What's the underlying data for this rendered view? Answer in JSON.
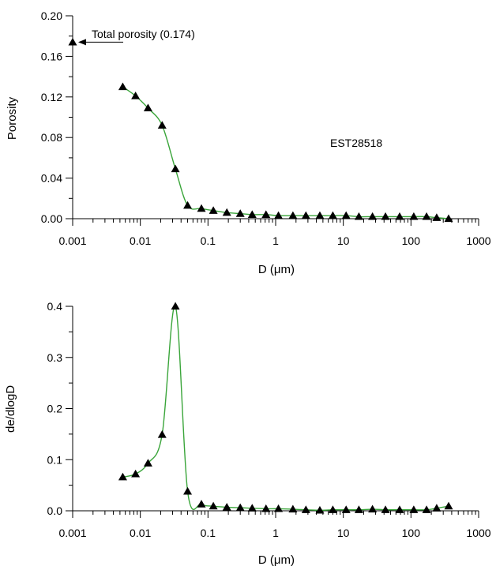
{
  "chart_data": [
    {
      "type": "scatter",
      "xlabel": "D (μm)",
      "ylabel": "Porosity",
      "xscale": "log",
      "xlim": [
        0.001,
        1000
      ],
      "ylim": [
        0,
        0.2
      ],
      "x_ticks": [
        "0.001",
        "0.01",
        "0.1",
        "1",
        "10",
        "100",
        "1000"
      ],
      "y_ticks": [
        "0.00",
        "0.04",
        "0.08",
        "0.12",
        "0.16",
        "0.20"
      ],
      "sample_label": "EST28518",
      "annotation": "Total porosity (0.174)",
      "total_porosity_point": {
        "x": 0.001,
        "y": 0.174
      },
      "curve_color": "#3aa53a",
      "series": [
        {
          "x": [
            0.0055,
            0.0085,
            0.013,
            0.021,
            0.033,
            0.05,
            0.08,
            0.12,
            0.19,
            0.3,
            0.45,
            0.72,
            1.1,
            1.8,
            2.8,
            4.5,
            7,
            11,
            17,
            27,
            42,
            68,
            110,
            170,
            240,
            360
          ],
          "y": [
            0.13,
            0.121,
            0.109,
            0.092,
            0.049,
            0.013,
            0.01,
            0.008,
            0.006,
            0.005,
            0.004,
            0.004,
            0.003,
            0.003,
            0.003,
            0.003,
            0.003,
            0.003,
            0.002,
            0.002,
            0.002,
            0.002,
            0.002,
            0.002,
            0.001,
            0.0
          ]
        }
      ]
    },
    {
      "type": "scatter",
      "xlabel": "D (μm)",
      "ylabel": "de/dlogD",
      "xscale": "log",
      "xlim": [
        0.001,
        1000
      ],
      "ylim": [
        0,
        0.4
      ],
      "x_ticks": [
        "0.001",
        "0.01",
        "0.1",
        "1",
        "10",
        "100",
        "1000"
      ],
      "y_ticks": [
        "0.0",
        "0.1",
        "0.2",
        "0.3",
        "0.4"
      ],
      "curve_color": "#3aa53a",
      "series": [
        {
          "x": [
            0.0055,
            0.0085,
            0.013,
            0.021,
            0.033,
            0.05,
            0.08,
            0.12,
            0.19,
            0.3,
            0.45,
            0.72,
            1.1,
            1.8,
            2.8,
            4.5,
            7,
            11,
            17,
            27,
            42,
            68,
            110,
            170,
            240,
            360
          ],
          "y": [
            0.066,
            0.072,
            0.093,
            0.149,
            0.4,
            0.038,
            0.013,
            0.009,
            0.007,
            0.006,
            0.005,
            0.004,
            0.004,
            0.003,
            0.002,
            0.001,
            0.002,
            0.002,
            0.002,
            0.003,
            0.002,
            0.002,
            0.002,
            0.002,
            0.005,
            0.009
          ]
        }
      ]
    }
  ]
}
